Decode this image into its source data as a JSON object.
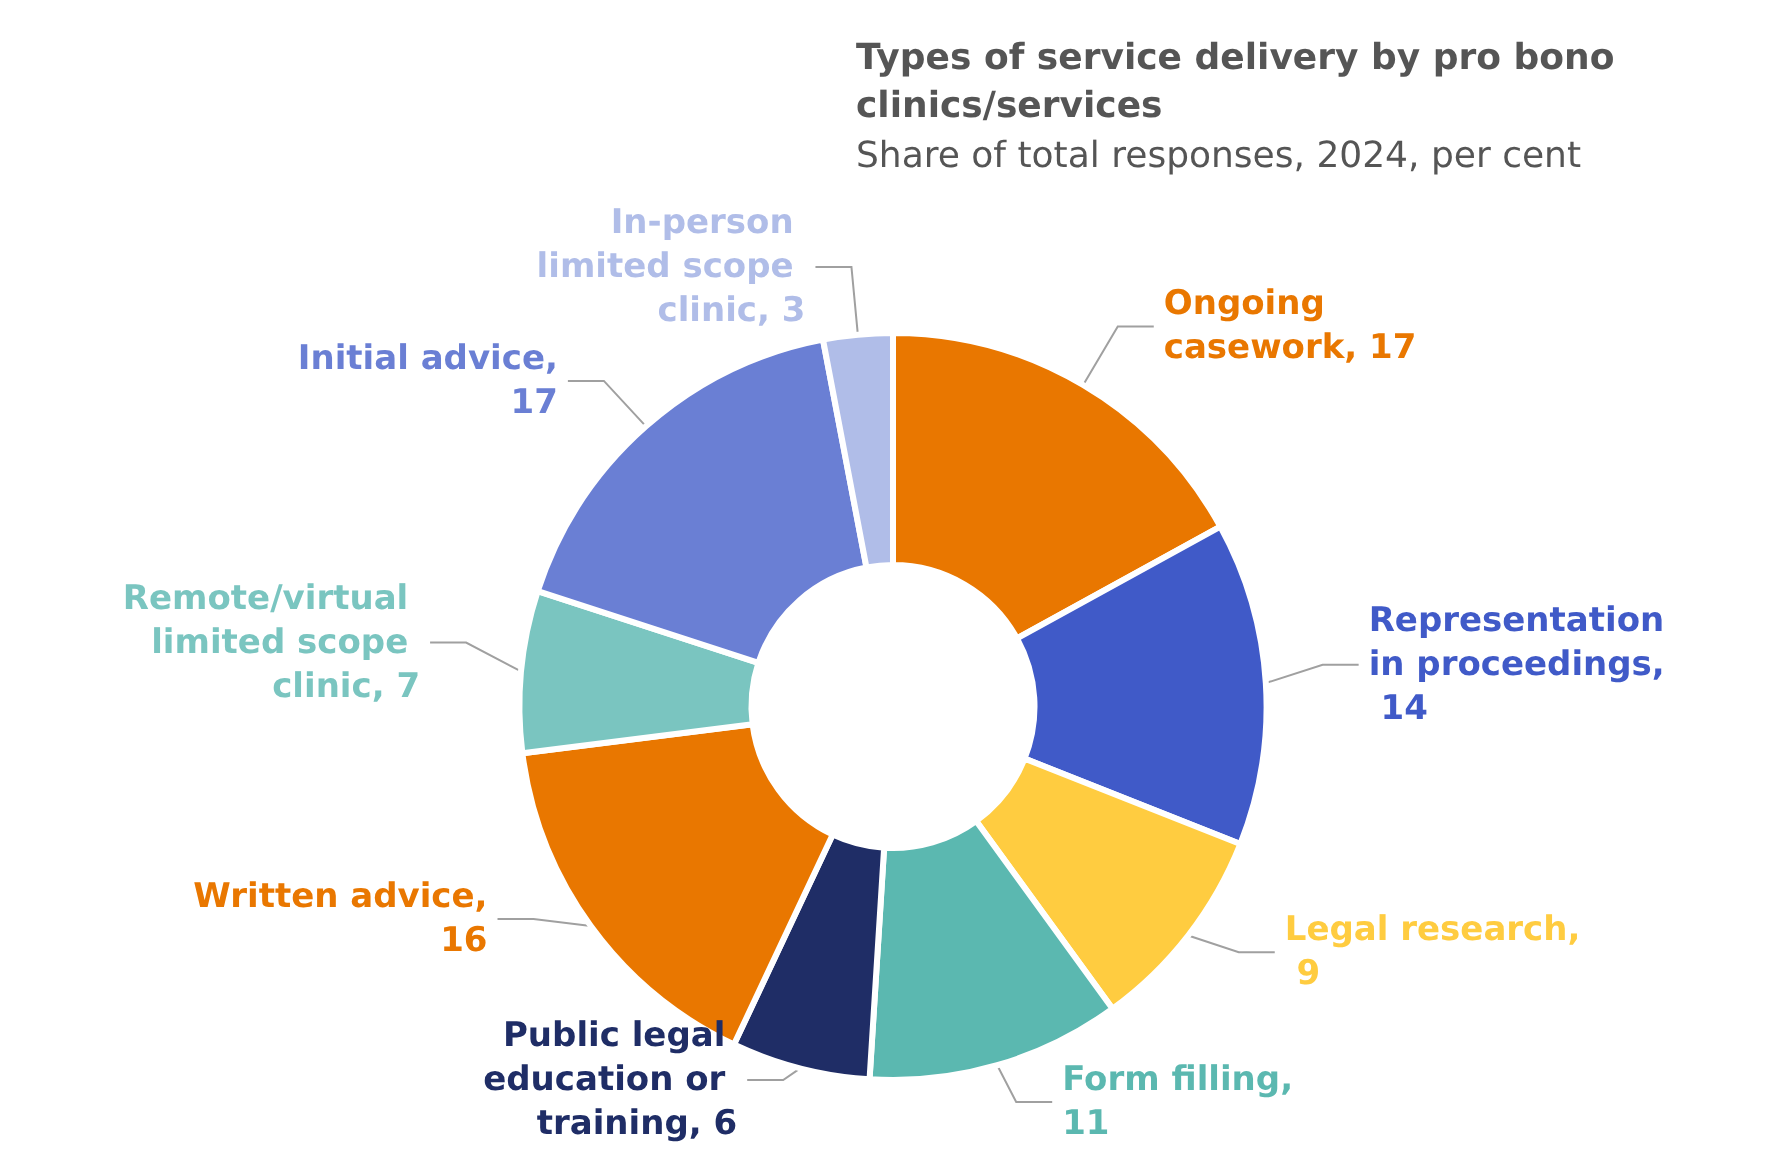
{
  "chart_data": {
    "type": "donut",
    "title": "Types of service delivery by pro bono clinics/services",
    "subtitle": "Share of total responses, 2024, per cent",
    "categories": [
      "Ongoing casework",
      "Representation in proceedings",
      "Legal research",
      "Form filling",
      "Public legal education or training",
      "Written advice",
      "Remote/virtual limited scope clinic",
      "Initial advice",
      "In-person limited scope clinic"
    ],
    "values": [
      17,
      14,
      9,
      11,
      6,
      16,
      7,
      17,
      3
    ],
    "value_labels": [
      ", 17",
      ", 14",
      ", 9",
      ", 11",
      ", 6",
      ", 16",
      ", 7",
      ", 17",
      ", 3"
    ],
    "colors": [
      "#e97700",
      "#405ac8",
      "#ffcc40",
      "#5bb8b0",
      "#1f2d66",
      "#e97700",
      "#7ac5c0",
      "#6a7fd4",
      "#b0bde8"
    ],
    "legend": false
  }
}
